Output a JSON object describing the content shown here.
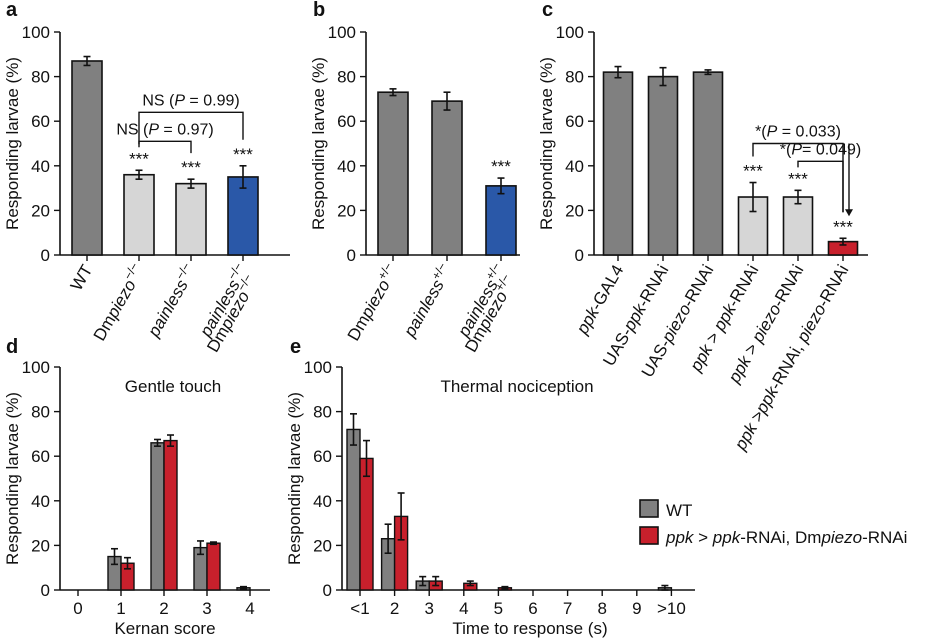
{
  "colors": {
    "wt": "#808080",
    "light": "#d6d6d6",
    "blue": "#2a58a8",
    "red": "#c8202c",
    "axis": "#111111"
  },
  "legend": {
    "wt": "WT",
    "rnai_parts": [
      "ppk",
      " > ",
      "ppk",
      "-RNAi, Dm",
      "piezo",
      "-RNAi"
    ]
  },
  "chart_data": [
    {
      "panel": "a",
      "type": "bar",
      "ylabel": "Responding larvae (%)",
      "ylim": [
        0,
        100
      ],
      "yticks": [
        0,
        20,
        40,
        60,
        80,
        100
      ],
      "categories": [
        {
          "label": "WT",
          "lines": [
            [
              [
                "WT",
                ""
              ]
            ]
          ]
        },
        {
          "label": "Dmpiezo−/−",
          "lines": [
            [
              [
                "Dm",
                ""
              ],
              [
                "piezo",
                "i"
              ],
              [
                "−/−",
                "sup"
              ]
            ]
          ]
        },
        {
          "label": "painless−/−",
          "lines": [
            [
              [
                "painless",
                "i"
              ],
              [
                "−/−",
                "sup"
              ]
            ]
          ]
        },
        {
          "label": "Dmpiezo−/− painless−/−",
          "lines": [
            [
              [
                "Dm",
                ""
              ],
              [
                "piezo",
                "i"
              ],
              [
                "−/−",
                "sup"
              ]
            ],
            [
              [
                "painless",
                "i"
              ],
              [
                "−/−",
                "sup"
              ]
            ]
          ]
        }
      ],
      "values": [
        87,
        36,
        32,
        35
      ],
      "errors": [
        2,
        2,
        2,
        5
      ],
      "colors": [
        "wt",
        "light",
        "light",
        "blue"
      ],
      "stars": [
        "",
        "***",
        "***",
        "***"
      ],
      "brackets": [
        {
          "from": 1,
          "to": 2,
          "y": 51,
          "parts": [
            [
              "NS (",
              ""
            ],
            [
              "P",
              "i"
            ],
            [
              " = 0.97)",
              ""
            ]
          ]
        },
        {
          "from": 1,
          "to": 3,
          "y": 64,
          "parts": [
            [
              "NS (",
              ""
            ],
            [
              "P",
              "i"
            ],
            [
              " = 0.99)",
              ""
            ]
          ]
        }
      ]
    },
    {
      "panel": "b",
      "type": "bar",
      "ylabel": "Responding larvae (%)",
      "ylim": [
        0,
        100
      ],
      "yticks": [
        0,
        20,
        40,
        60,
        80,
        100
      ],
      "categories": [
        {
          "label": "Dmpiezo+/−",
          "lines": [
            [
              [
                "Dm",
                ""
              ],
              [
                "piezo",
                "i"
              ],
              [
                "+/−",
                "sup"
              ]
            ]
          ]
        },
        {
          "label": "painless+/−",
          "lines": [
            [
              [
                "painless",
                "i"
              ],
              [
                "+/−",
                "sup"
              ]
            ]
          ]
        },
        {
          "label": "Dmpiezo+/− painless+/−",
          "lines": [
            [
              [
                "Dm",
                ""
              ],
              [
                "piezo",
                "i"
              ],
              [
                "+/−",
                "sup"
              ]
            ],
            [
              [
                "painless",
                "i"
              ],
              [
                "+/−",
                "sup"
              ]
            ]
          ]
        }
      ],
      "values": [
        73,
        69,
        31
      ],
      "errors": [
        1.5,
        4,
        3.5
      ],
      "colors": [
        "wt",
        "wt",
        "blue"
      ],
      "stars": [
        "",
        "",
        "***"
      ],
      "brackets": []
    },
    {
      "panel": "c",
      "type": "bar",
      "ylabel": "Responding larvae (%)",
      "ylim": [
        0,
        100
      ],
      "yticks": [
        0,
        20,
        40,
        60,
        80,
        100
      ],
      "categories": [
        {
          "label": "ppk-GAL4",
          "lines": [
            [
              [
                "ppk",
                "i"
              ],
              [
                "-GAL4",
                ""
              ]
            ]
          ]
        },
        {
          "label": "UAS-ppk-RNAi",
          "lines": [
            [
              [
                "UAS-",
                ""
              ],
              [
                "ppk",
                "i"
              ],
              [
                "-RNAi",
                ""
              ]
            ]
          ]
        },
        {
          "label": "UAS-piezo-RNAi",
          "lines": [
            [
              [
                "UAS-",
                ""
              ],
              [
                "piezo",
                "i"
              ],
              [
                "-RNAi",
                ""
              ]
            ]
          ]
        },
        {
          "label": "ppk > ppk-RNAi",
          "lines": [
            [
              [
                "ppk",
                "i"
              ],
              [
                " > ",
                ""
              ],
              [
                "ppk",
                "i"
              ],
              [
                "-RNAi",
                ""
              ]
            ]
          ]
        },
        {
          "label": "ppk > piezo-RNAi",
          "lines": [
            [
              [
                "ppk",
                "i"
              ],
              [
                " > ",
                ""
              ],
              [
                "piezo",
                "i"
              ],
              [
                "-RNAi",
                ""
              ]
            ]
          ]
        },
        {
          "label": "ppk >ppk-RNAi, piezo-RNAi",
          "lines": [
            [
              [
                "ppk",
                "i"
              ],
              [
                " >",
                ""
              ],
              [
                "ppk",
                "i"
              ],
              [
                "-RNAi, ",
                ""
              ],
              [
                "piezo",
                "i"
              ],
              [
                "-RNAi",
                ""
              ]
            ]
          ]
        }
      ],
      "values": [
        82,
        80,
        82,
        26,
        26,
        6
      ],
      "errors": [
        2.5,
        4,
        1,
        6.5,
        3,
        1.5
      ],
      "colors": [
        "wt",
        "wt",
        "wt",
        "light",
        "light",
        "red"
      ],
      "stars": [
        "",
        "",
        "",
        "***",
        "***",
        "***"
      ],
      "brackets": [
        {
          "from": 4,
          "to": 5,
          "y": 42,
          "parts": [
            [
              "*(",
              ""
            ],
            [
              "P",
              "i"
            ],
            [
              "= 0.049)",
              ""
            ]
          ]
        },
        {
          "from": 3,
          "to": 5,
          "y": 50,
          "parts": [
            [
              "*(",
              ""
            ],
            [
              "P",
              "i"
            ],
            [
              " = 0.033)",
              ""
            ]
          ]
        }
      ]
    },
    {
      "panel": "d",
      "type": "bar",
      "title": "Gentle touch",
      "xlabel": "Kernan score",
      "ylabel": "Responding larvae (%)",
      "ylim": [
        0,
        100
      ],
      "yticks": [
        0,
        20,
        40,
        60,
        80,
        100
      ],
      "categories": [
        "0",
        "1",
        "2",
        "3",
        "4"
      ],
      "series": [
        {
          "name": "WT",
          "color": "wt",
          "values": [
            0,
            15,
            66,
            19,
            1
          ],
          "errors": [
            0,
            3.5,
            1.5,
            3,
            0.5
          ]
        },
        {
          "name": "ppk > ppk-RNAi, Dmpiezo-RNAi",
          "color": "red",
          "values": [
            0,
            12,
            67,
            21,
            0
          ],
          "errors": [
            0,
            2.5,
            2.5,
            0.5,
            0
          ]
        }
      ]
    },
    {
      "panel": "e",
      "type": "bar",
      "title": "Thermal nociception",
      "xlabel": "Time to response (s)",
      "ylabel": "Responding larvae (%)",
      "ylim": [
        0,
        100
      ],
      "yticks": [
        0,
        20,
        40,
        60,
        80,
        100
      ],
      "categories": [
        "<1",
        "2",
        "3",
        "4",
        "5",
        "6",
        "7",
        "8",
        "9",
        ">10"
      ],
      "series": [
        {
          "name": "WT",
          "color": "wt",
          "values": [
            72,
            23,
            4,
            0,
            0,
            0,
            0,
            0,
            0,
            1
          ],
          "errors": [
            7,
            6.5,
            2,
            0,
            0,
            0,
            0,
            0,
            0,
            1
          ]
        },
        {
          "name": "ppk > ppk-RNAi, Dmpiezo-RNAi",
          "color": "red",
          "values": [
            59,
            33,
            4,
            3,
            1,
            0,
            0,
            0,
            0,
            0
          ],
          "errors": [
            8,
            10.5,
            2,
            1,
            0.5,
            0,
            0,
            0,
            0,
            0
          ]
        }
      ]
    }
  ]
}
